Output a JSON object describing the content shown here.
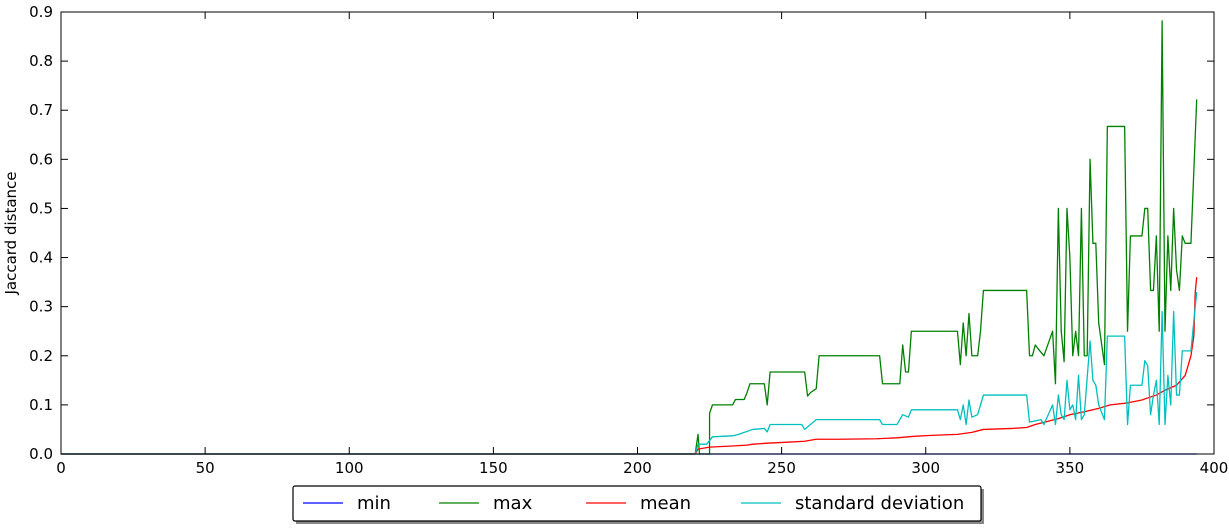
{
  "chart_data": {
    "type": "line",
    "title": "",
    "xlabel": "",
    "ylabel": "Jaccard distance",
    "xlim": [
      0,
      400
    ],
    "ylim": [
      0,
      0.9
    ],
    "x_ticks": [
      "0",
      "50",
      "100",
      "150",
      "200",
      "250",
      "300",
      "350",
      "400"
    ],
    "y_ticks": [
      "0.0",
      "0.1",
      "0.2",
      "0.3",
      "0.4",
      "0.5",
      "0.6",
      "0.7",
      "0.8",
      "0.9"
    ],
    "grid": false,
    "legend_position": "bottom-center",
    "series": [
      {
        "name": "min",
        "color": "#0000ff",
        "points": [
          [
            0,
            0
          ],
          [
            394,
            0
          ]
        ]
      },
      {
        "name": "max",
        "color": "#008000",
        "points": [
          [
            0,
            0
          ],
          [
            220,
            0
          ],
          [
            221,
            0.04
          ],
          [
            221.5,
            0
          ],
          [
            225,
            0
          ],
          [
            225,
            0.083
          ],
          [
            226,
            0.1
          ],
          [
            233,
            0.1
          ],
          [
            234,
            0.111
          ],
          [
            237,
            0.111
          ],
          [
            238,
            0.125
          ],
          [
            239,
            0.143
          ],
          [
            244,
            0.143
          ],
          [
            245,
            0.1
          ],
          [
            246,
            0.167
          ],
          [
            258,
            0.167
          ],
          [
            259,
            0.118
          ],
          [
            260,
            0.125
          ],
          [
            262,
            0.133
          ],
          [
            263,
            0.2
          ],
          [
            284,
            0.2
          ],
          [
            285,
            0.143
          ],
          [
            291,
            0.143
          ],
          [
            292,
            0.222
          ],
          [
            293,
            0.167
          ],
          [
            294,
            0.167
          ],
          [
            295,
            0.25
          ],
          [
            311,
            0.25
          ],
          [
            312,
            0.182
          ],
          [
            313,
            0.267
          ],
          [
            314,
            0.2
          ],
          [
            315,
            0.286
          ],
          [
            316,
            0.2
          ],
          [
            318,
            0.2
          ],
          [
            319,
            0.25
          ],
          [
            320,
            0.333
          ],
          [
            335,
            0.333
          ],
          [
            336,
            0.2
          ],
          [
            337,
            0.2
          ],
          [
            338,
            0.222
          ],
          [
            339,
            0.214
          ],
          [
            341,
            0.2
          ],
          [
            344,
            0.25
          ],
          [
            345,
            0.143
          ],
          [
            346,
            0.5
          ],
          [
            347,
            0.25
          ],
          [
            348,
            0.188
          ],
          [
            349,
            0.5
          ],
          [
            350,
            0.4
          ],
          [
            351,
            0.2
          ],
          [
            352,
            0.25
          ],
          [
            353,
            0.2
          ],
          [
            354,
            0.5
          ],
          [
            355,
            0.2
          ],
          [
            356,
            0.2
          ],
          [
            357,
            0.6
          ],
          [
            358,
            0.429
          ],
          [
            359,
            0.429
          ],
          [
            360,
            0.267
          ],
          [
            362,
            0.182
          ],
          [
            363,
            0.667
          ],
          [
            369,
            0.667
          ],
          [
            370,
            0.25
          ],
          [
            371,
            0.444
          ],
          [
            375,
            0.444
          ],
          [
            376,
            0.5
          ],
          [
            377,
            0.5
          ],
          [
            378,
            0.333
          ],
          [
            379,
            0.333
          ],
          [
            380,
            0.444
          ],
          [
            381,
            0.25
          ],
          [
            382,
            0.882
          ],
          [
            383,
            0.25
          ],
          [
            384,
            0.444
          ],
          [
            385,
            0.333
          ],
          [
            386,
            0.5
          ],
          [
            387,
            0.375
          ],
          [
            388,
            0.333
          ],
          [
            389,
            0.444
          ],
          [
            390,
            0.429
          ],
          [
            392,
            0.429
          ],
          [
            394,
            0.722
          ]
        ]
      },
      {
        "name": "mean",
        "color": "#ff0000",
        "points": [
          [
            0,
            0
          ],
          [
            220,
            0
          ],
          [
            221,
            0.01
          ],
          [
            223,
            0.012
          ],
          [
            225,
            0.014
          ],
          [
            232,
            0.016
          ],
          [
            238,
            0.018
          ],
          [
            240,
            0.02
          ],
          [
            245,
            0.022
          ],
          [
            252,
            0.024
          ],
          [
            258,
            0.026
          ],
          [
            262,
            0.03
          ],
          [
            270,
            0.03
          ],
          [
            283,
            0.031
          ],
          [
            290,
            0.033
          ],
          [
            296,
            0.036
          ],
          [
            302,
            0.038
          ],
          [
            311,
            0.04
          ],
          [
            316,
            0.044
          ],
          [
            320,
            0.05
          ],
          [
            330,
            0.052
          ],
          [
            335,
            0.054
          ],
          [
            338,
            0.06
          ],
          [
            342,
            0.066
          ],
          [
            346,
            0.072
          ],
          [
            350,
            0.08
          ],
          [
            355,
            0.086
          ],
          [
            360,
            0.093
          ],
          [
            364,
            0.1
          ],
          [
            370,
            0.104
          ],
          [
            375,
            0.11
          ],
          [
            380,
            0.12
          ],
          [
            383,
            0.13
          ],
          [
            387,
            0.14
          ],
          [
            390,
            0.16
          ],
          [
            392,
            0.2
          ],
          [
            393,
            0.24
          ],
          [
            393.5,
            0.33
          ],
          [
            394,
            0.36
          ]
        ]
      },
      {
        "name": "standard deviation",
        "color": "#00bfbf",
        "points": [
          [
            0,
            0
          ],
          [
            220,
            0
          ],
          [
            221,
            0.02
          ],
          [
            224,
            0.02
          ],
          [
            226,
            0.035
          ],
          [
            233,
            0.037
          ],
          [
            235,
            0.04
          ],
          [
            240,
            0.05
          ],
          [
            244,
            0.052
          ],
          [
            245,
            0.045
          ],
          [
            246,
            0.06
          ],
          [
            257,
            0.06
          ],
          [
            258,
            0.05
          ],
          [
            262,
            0.07
          ],
          [
            284,
            0.07
          ],
          [
            285,
            0.06
          ],
          [
            290,
            0.06
          ],
          [
            292,
            0.08
          ],
          [
            294,
            0.075
          ],
          [
            295,
            0.09
          ],
          [
            311,
            0.09
          ],
          [
            312,
            0.07
          ],
          [
            313,
            0.1
          ],
          [
            314,
            0.06
          ],
          [
            315,
            0.11
          ],
          [
            316,
            0.075
          ],
          [
            318,
            0.08
          ],
          [
            320,
            0.12
          ],
          [
            335,
            0.12
          ],
          [
            336,
            0.065
          ],
          [
            340,
            0.07
          ],
          [
            341,
            0.06
          ],
          [
            344,
            0.1
          ],
          [
            345,
            0.06
          ],
          [
            346,
            0.12
          ],
          [
            347,
            0.08
          ],
          [
            348,
            0.07
          ],
          [
            349,
            0.15
          ],
          [
            350,
            0.09
          ],
          [
            351,
            0.1
          ],
          [
            352,
            0.07
          ],
          [
            353,
            0.16
          ],
          [
            354,
            0.07
          ],
          [
            355,
            0.08
          ],
          [
            357,
            0.23
          ],
          [
            358,
            0.15
          ],
          [
            359,
            0.14
          ],
          [
            360,
            0.1
          ],
          [
            362,
            0.07
          ],
          [
            363,
            0.24
          ],
          [
            369,
            0.24
          ],
          [
            370,
            0.06
          ],
          [
            371,
            0.14
          ],
          [
            375,
            0.14
          ],
          [
            376,
            0.19
          ],
          [
            377,
            0.18
          ],
          [
            378,
            0.08
          ],
          [
            379,
            0.12
          ],
          [
            380,
            0.15
          ],
          [
            381,
            0.06
          ],
          [
            382,
            0.29
          ],
          [
            383,
            0.06
          ],
          [
            384,
            0.16
          ],
          [
            385,
            0.1
          ],
          [
            386,
            0.29
          ],
          [
            387,
            0.12
          ],
          [
            388,
            0.12
          ],
          [
            389,
            0.21
          ],
          [
            392,
            0.21
          ],
          [
            394,
            0.33
          ]
        ]
      }
    ]
  }
}
